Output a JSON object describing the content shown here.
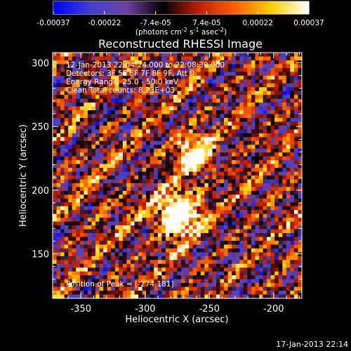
{
  "chart_data": {
    "type": "heatmap",
    "title": "Reconstructed RHESSI Image",
    "xlabel": "Heliocentric X (arcsec)",
    "ylabel": "Heliocentric Y (arcsec)",
    "xlim": [
      -372,
      -178
    ],
    "ylim": [
      115,
      308
    ],
    "x_ticks": [
      -350,
      -300,
      -250,
      -200
    ],
    "x_tick_labels": [
      "-350",
      "-300",
      "-250",
      "-200"
    ],
    "y_ticks": [
      150,
      200,
      250,
      300
    ],
    "y_tick_labels": [
      "150",
      "200",
      "250",
      "300"
    ],
    "colorbar": {
      "range": [
        -0.00037,
        0.00037
      ],
      "tick_labels": [
        "-0.00037",
        "-0.00022",
        "-7.4e-05",
        "7.4e-05",
        "0.00022",
        "0.00037"
      ],
      "unit_label": "(photons cm",
      "unit_exp1": "-2",
      "unit_mid": " s",
      "unit_exp2": "-1",
      "unit_end": " asec",
      "unit_exp3": "-2",
      "unit_close": ")"
    },
    "annotations": {
      "time_range": "12-Jan-2013 22:04:24.000 to 22:08:30.000",
      "detectors": "Detectors: 3F 5F 6F 7F 8F 9F, Att 0",
      "energy_range": "Energy Range: 25.0 - 50.0 keV",
      "clean_counts": "Clean    Total counts: 8.23E+03",
      "peak": "Position of Peak = [-274,181]"
    },
    "peak_position": [
      -274,
      181
    ],
    "pixel_grid": {
      "nx": 64,
      "ny": 64
    },
    "footer": "17-Jan-2013 22:14"
  },
  "colors": {
    "background": "#000000",
    "colormap": [
      "#0000ff",
      "#4040d0",
      "#7040a0",
      "#000000",
      "#c02000",
      "#ff6000",
      "#ffd000",
      "#ffffff"
    ]
  }
}
